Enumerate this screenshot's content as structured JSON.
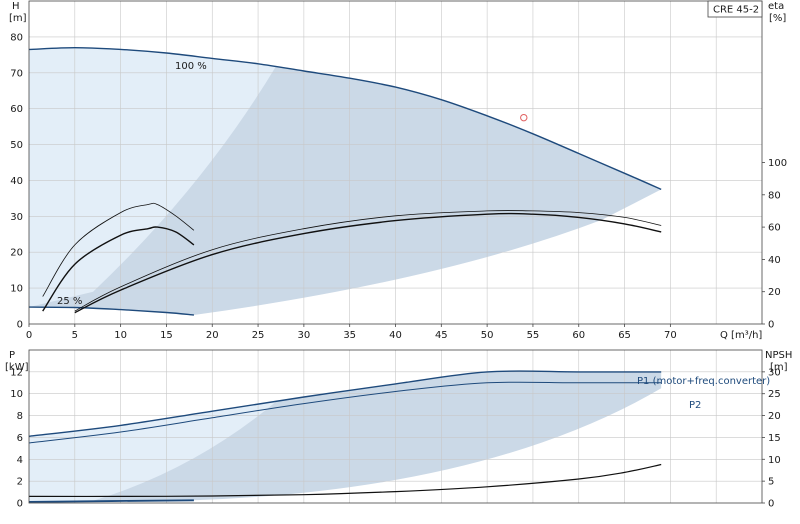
{
  "colors": {
    "band_dark": "#cbd9e7",
    "band_light": "#e8f1fa",
    "curve": "#1e4a7c",
    "curve_black": "#111111",
    "duty_point": "#e06060"
  },
  "top_chart": {
    "pump_label": "CRE 45-2",
    "y_left_label": [
      "H",
      "[m]"
    ],
    "y_right_label": [
      "eta",
      "[%]"
    ],
    "x_label": "Q [m³/h]",
    "x_ticks": [
      "0",
      "5",
      "10",
      "15",
      "20",
      "25",
      "30",
      "35",
      "40",
      "45",
      "50",
      "55",
      "60",
      "65",
      "70"
    ],
    "y_left_ticks": [
      "0",
      "10",
      "20",
      "30",
      "40",
      "50",
      "60",
      "70",
      "80"
    ],
    "y_right_ticks": [
      "0",
      "20",
      "40",
      "60",
      "80",
      "100"
    ],
    "label_100": "100 %",
    "label_25": "25 %"
  },
  "bottom_chart": {
    "y_left_label": [
      "P",
      "[kW]"
    ],
    "y_right_label": [
      "NPSH",
      "[m]"
    ],
    "y_left_ticks": [
      "0",
      "2",
      "4",
      "6",
      "8",
      "10",
      "12"
    ],
    "y_right_ticks": [
      "0",
      "5",
      "10",
      "15",
      "20",
      "25",
      "30"
    ],
    "label_p1": "P1 (motor+freq.converter)",
    "label_p2": "P2"
  },
  "chart_data": [
    {
      "type": "line",
      "title": "CRE 45-2",
      "xlabel": "Q [m³/h]",
      "ylabel": "H [m]",
      "y2label": "eta [%]",
      "xlim": [
        0,
        80
      ],
      "ylim": [
        0,
        90
      ],
      "y2lim": [
        0,
        200
      ],
      "series": [
        {
          "name": "100 %",
          "axis": "H",
          "x": [
            0,
            5,
            10,
            15,
            20,
            25,
            30,
            35,
            40,
            45,
            50,
            55,
            60,
            65,
            69
          ],
          "values": [
            76.5,
            77,
            76.5,
            75.5,
            74,
            72.5,
            70.5,
            68.5,
            66,
            62.5,
            58,
            53,
            47.5,
            42,
            37.5
          ]
        },
        {
          "name": "25 %",
          "axis": "H",
          "x": [
            0,
            5,
            10,
            15,
            18
          ],
          "values": [
            4.7,
            4.6,
            4,
            3.2,
            2.5
          ]
        },
        {
          "name": "eta 100 %",
          "axis": "eta",
          "x": [
            5,
            10,
            20,
            30,
            40,
            50,
            55,
            60,
            65,
            69
          ],
          "values": [
            7,
            21,
            43,
            56,
            64,
            68,
            68,
            66,
            62,
            57
          ]
        },
        {
          "name": "eta 100 % upper",
          "axis": "eta",
          "x": [
            5,
            10,
            20,
            30,
            40,
            50,
            55,
            60,
            65,
            69
          ],
          "values": [
            8,
            23,
            46,
            59,
            67,
            70,
            70,
            69,
            66,
            61
          ]
        },
        {
          "name": "eta 25 %",
          "axis": "eta",
          "x": [
            1.5,
            5,
            10,
            13,
            14,
            16,
            18
          ],
          "values": [
            8,
            37,
            55,
            59,
            60,
            57,
            49
          ]
        },
        {
          "name": "eta 25 % upper",
          "axis": "eta",
          "x": [
            1.5,
            5,
            10,
            13,
            14,
            16,
            18
          ],
          "values": [
            17,
            49,
            69,
            74,
            74,
            67,
            58
          ]
        }
      ],
      "duty_point": {
        "x": 54,
        "y": 57.5
      }
    },
    {
      "type": "line",
      "xlabel": "Q [m³/h]",
      "ylabel": "P [kW]",
      "y2label": "NPSH [m]",
      "xlim": [
        0,
        80
      ],
      "ylim": [
        0,
        14
      ],
      "y2lim": [
        0,
        35
      ],
      "series": [
        {
          "name": "P1 (motor+freq.converter)",
          "axis": "P",
          "x": [
            0,
            10,
            20,
            30,
            40,
            50,
            60,
            69
          ],
          "values": [
            6.1,
            7.1,
            8.4,
            9.7,
            10.9,
            12,
            12,
            12
          ]
        },
        {
          "name": "P2",
          "axis": "P",
          "x": [
            0,
            10,
            20,
            30,
            40,
            50,
            60,
            69
          ],
          "values": [
            5.5,
            6.5,
            7.8,
            9.1,
            10.2,
            11,
            11,
            11
          ]
        },
        {
          "name": "P 25 %",
          "axis": "P",
          "x": [
            0,
            18
          ],
          "values": [
            0.1,
            0.25
          ]
        },
        {
          "name": "NPSH",
          "axis": "NPSH",
          "x": [
            0,
            10,
            20,
            30,
            40,
            50,
            60,
            65,
            69
          ],
          "values": [
            1.5,
            1.5,
            1.6,
            1.9,
            2.6,
            3.7,
            5.5,
            7,
            8.8
          ]
        }
      ]
    }
  ]
}
